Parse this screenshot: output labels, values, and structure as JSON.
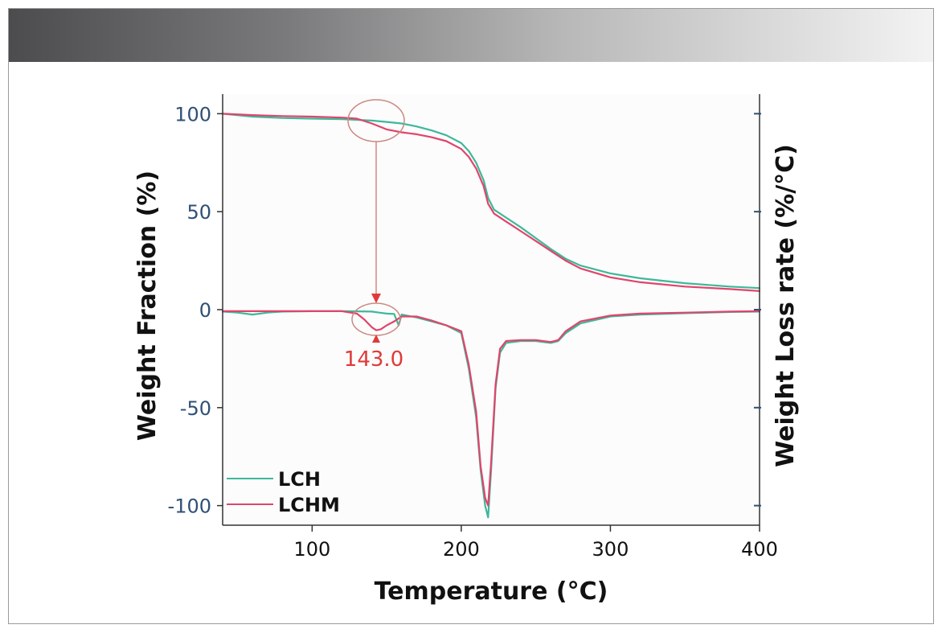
{
  "chart_data": {
    "type": "line",
    "x_label": "Temperature (°C)",
    "y_label_left": "Weight Fraction (%)",
    "y_label_right": "Weight Loss rate (%/°C)",
    "xlim": [
      40,
      400
    ],
    "ylim": [
      -110,
      110
    ],
    "x_ticks": [
      "100",
      "200",
      "300",
      "400"
    ],
    "y_ticks": [
      "100",
      "50",
      "0",
      "-50",
      "-100"
    ],
    "annotation": "143.0",
    "annotation_x": 143.0,
    "colors": {
      "LCH": "#3db89a",
      "LCHM": "#e0456a",
      "annotation": "#e03a3a",
      "circle": "#c98a82"
    },
    "series": [
      {
        "name": "LCH",
        "curve": "weight_fraction",
        "x": [
          40,
          60,
          80,
          100,
          120,
          140,
          150,
          160,
          170,
          180,
          190,
          200,
          205,
          210,
          215,
          218,
          222,
          230,
          240,
          250,
          260,
          270,
          280,
          300,
          320,
          350,
          380,
          400
        ],
        "values": [
          100,
          98.5,
          97.8,
          97.5,
          97.2,
          96.5,
          95.8,
          95,
          93.5,
          91.5,
          89,
          85,
          81,
          75,
          66,
          57,
          51,
          47,
          42,
          36.5,
          31,
          26,
          22.5,
          18.5,
          16,
          13.5,
          11.8,
          11
        ]
      },
      {
        "name": "LCHM",
        "curve": "weight_fraction",
        "x": [
          40,
          60,
          80,
          100,
          120,
          130,
          140,
          150,
          160,
          170,
          180,
          190,
          200,
          205,
          210,
          215,
          218,
          222,
          230,
          240,
          250,
          260,
          270,
          280,
          300,
          320,
          350,
          380,
          400
        ],
        "values": [
          100,
          99.3,
          98.8,
          98.5,
          98,
          97.5,
          95,
          92,
          90.5,
          89.5,
          88,
          86,
          82,
          78,
          72,
          63,
          54,
          49,
          45,
          40,
          35,
          30,
          25,
          21,
          16.5,
          14,
          11.8,
          10.5,
          9.5
        ]
      },
      {
        "name": "LCH",
        "curve": "weight_loss_rate",
        "x": [
          40,
          50,
          60,
          70,
          80,
          100,
          120,
          140,
          145,
          150,
          155,
          158,
          160,
          170,
          180,
          190,
          200,
          205,
          210,
          213,
          216,
          218,
          220,
          223,
          226,
          230,
          240,
          250,
          260,
          265,
          270,
          280,
          300,
          320,
          350,
          380,
          400
        ],
        "values": [
          -1,
          -1.5,
          -2.5,
          -1.5,
          -1,
          -0.8,
          -0.8,
          -1,
          -1.5,
          -2,
          -2.2,
          -8,
          -2.5,
          -4,
          -6,
          -8,
          -12,
          -30,
          -55,
          -82,
          -100,
          -106,
          -82,
          -40,
          -22,
          -17,
          -16,
          -16,
          -17,
          -16,
          -12,
          -7,
          -3.5,
          -2.5,
          -1.8,
          -1.2,
          -1
        ]
      },
      {
        "name": "LCHM",
        "curve": "weight_loss_rate",
        "x": [
          40,
          60,
          80,
          100,
          120,
          130,
          135,
          140,
          143,
          146,
          150,
          155,
          160,
          170,
          180,
          190,
          200,
          205,
          210,
          213,
          216,
          218,
          220,
          223,
          226,
          230,
          240,
          250,
          260,
          265,
          270,
          280,
          300,
          320,
          350,
          380,
          400
        ],
        "values": [
          -0.8,
          -0.8,
          -0.8,
          -0.8,
          -0.8,
          -2,
          -5,
          -9,
          -10.5,
          -10,
          -8,
          -6,
          -3.5,
          -3.5,
          -5.5,
          -8,
          -11,
          -28,
          -52,
          -80,
          -96,
          -100,
          -78,
          -38,
          -20,
          -16,
          -15.5,
          -15.5,
          -16.5,
          -15.5,
          -11,
          -6,
          -3,
          -2,
          -1.5,
          -1,
          -0.8
        ]
      }
    ],
    "legend": [
      {
        "name": "LCH",
        "color": "#3db89a"
      },
      {
        "name": "LCHM",
        "color": "#e0456a"
      }
    ],
    "legend_position": "bottom-left"
  }
}
